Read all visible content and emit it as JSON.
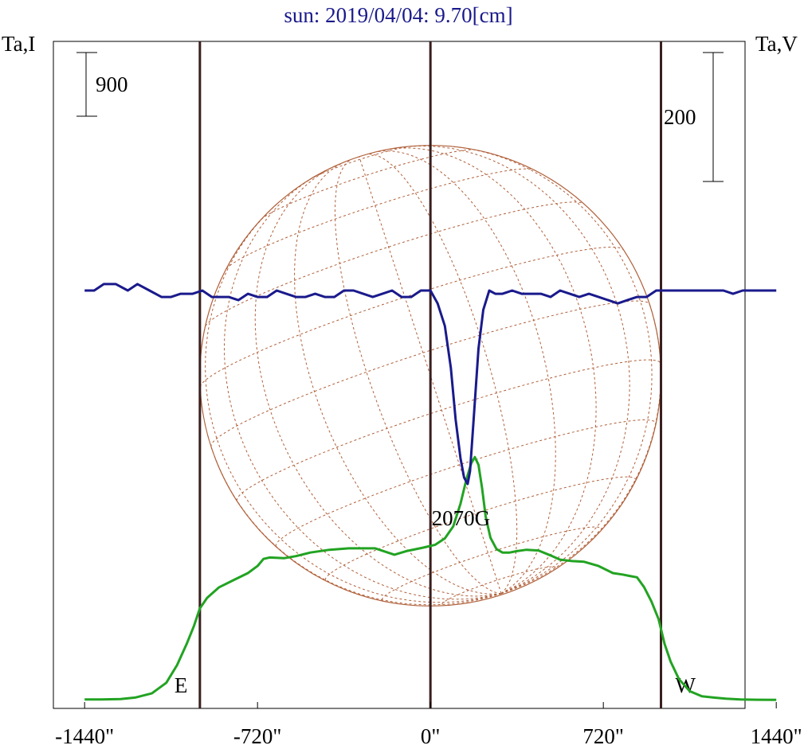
{
  "chart_data": {
    "type": "line",
    "title": "sun: 2019/04/04: 9.70[cm]",
    "ylabel_left": "Ta,I",
    "ylabel_right": "Ta,V",
    "xlim": [
      -1570,
      1310
    ],
    "xticks": [
      {
        "value": -1440,
        "label": "-1440\""
      },
      {
        "value": -720,
        "label": "-720\""
      },
      {
        "value": 0,
        "label": "0\""
      },
      {
        "value": 720,
        "label": "720\""
      },
      {
        "value": 1440,
        "label": "1440\""
      }
    ],
    "scale_bar_left": {
      "label": "900",
      "value": 900
    },
    "scale_bar_right": {
      "label": "200",
      "value": 200
    },
    "limb_markers": [
      {
        "label": "E",
        "x": -960
      },
      {
        "label": "W",
        "x": 960
      }
    ],
    "center_line_x": 0,
    "annotation": {
      "label": "2070G",
      "x": 160
    },
    "disk": {
      "radius_arcsec": 960,
      "color": "#b0603a"
    },
    "series": [
      {
        "color": "#22a322",
        "x": [
          -1440,
          -1370,
          -1290,
          -1230,
          -1160,
          -1100,
          -1055,
          -1015,
          -985,
          -960,
          -930,
          -880,
          -820,
          -760,
          -720,
          -695,
          -670,
          -610,
          -560,
          -500,
          -420,
          -340,
          -230,
          -150,
          -100,
          -30,
          20,
          60,
          95,
          125,
          150,
          170,
          185,
          200,
          215,
          230,
          250,
          275,
          300,
          330,
          360,
          400,
          450,
          500,
          540,
          590,
          640,
          700,
          760,
          800,
          830,
          860,
          890,
          920,
          950,
          975,
          1000,
          1035,
          1080,
          1130,
          1180,
          1230,
          1290,
          1360,
          1440
        ],
        "values": [
          15,
          15,
          20,
          40,
          100,
          250,
          500,
          800,
          1050,
          1300,
          1450,
          1600,
          1700,
          1800,
          1900,
          2000,
          2020,
          2010,
          2040,
          2090,
          2130,
          2150,
          2150,
          2060,
          2110,
          2160,
          2200,
          2290,
          2460,
          2780,
          3130,
          3350,
          3440,
          3330,
          3000,
          2600,
          2300,
          2140,
          2090,
          2090,
          2110,
          2130,
          2120,
          2050,
          1990,
          1970,
          1960,
          1900,
          1800,
          1780,
          1760,
          1740,
          1600,
          1400,
          1150,
          800,
          550,
          300,
          130,
          60,
          40,
          25,
          15,
          10,
          8
        ]
      },
      {
        "color": "#1a1a8c",
        "x": [
          -1440,
          -1400,
          -1360,
          -1310,
          -1260,
          -1220,
          -1170,
          -1120,
          -1080,
          -1040,
          -990,
          -950,
          -910,
          -880,
          -840,
          -800,
          -760,
          -720,
          -680,
          -640,
          -600,
          -560,
          -520,
          -480,
          -440,
          -400,
          -360,
          -320,
          -280,
          -240,
          -200,
          -160,
          -120,
          -80,
          -40,
          0,
          30,
          60,
          85,
          105,
          125,
          140,
          155,
          165,
          180,
          200,
          220,
          245,
          270,
          300,
          340,
          380,
          420,
          460,
          500,
          540,
          580,
          620,
          660,
          700,
          740,
          780,
          820,
          860,
          900,
          940,
          980,
          1020,
          1060,
          1100,
          1140,
          1180,
          1220,
          1260,
          1300,
          1340,
          1380,
          1440
        ],
        "values": [
          0,
          0,
          10,
          10,
          0,
          10,
          0,
          -10,
          -10,
          -5,
          -5,
          0,
          -10,
          -10,
          -10,
          -15,
          -5,
          -10,
          -10,
          0,
          -5,
          -10,
          -10,
          -5,
          -10,
          -10,
          0,
          0,
          -5,
          -10,
          -5,
          0,
          -10,
          -10,
          0,
          0,
          -20,
          -55,
          -120,
          -200,
          -260,
          -290,
          -300,
          -280,
          -200,
          -90,
          -30,
          0,
          -5,
          -5,
          0,
          -5,
          -5,
          -5,
          -10,
          0,
          -5,
          -10,
          -5,
          -10,
          -15,
          -20,
          -15,
          -10,
          -10,
          0,
          0,
          0,
          0,
          0,
          0,
          0,
          0,
          -5,
          0,
          0,
          0,
          0
        ]
      }
    ]
  }
}
